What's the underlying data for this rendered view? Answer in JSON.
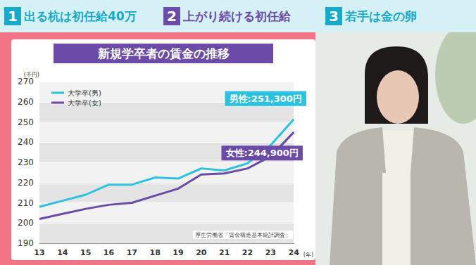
{
  "header": {
    "topics": [
      {
        "number": "1",
        "text": "出る杭は初任給40万",
        "color": "#17a9c9"
      },
      {
        "number": "2",
        "text": "上がり続ける初任給",
        "color": "#6b4aa8"
      },
      {
        "number": "3",
        "text": "若手は金の卵",
        "color": "#17a9c9"
      }
    ]
  },
  "chart_data": {
    "type": "line",
    "title": "新規学卒者の賃金の推移",
    "y_label": "(千円)",
    "x_label": "(年)",
    "source": "厚生労働省「賃金構造基本統計調査」",
    "categories": [
      "13",
      "14",
      "15",
      "16",
      "17",
      "18",
      "19",
      "20",
      "21",
      "22",
      "23",
      "24"
    ],
    "series": [
      {
        "name": "大学卒(男)",
        "color": "#2ac2df",
        "values": [
          208,
          211,
          214,
          219,
          219,
          222.5,
          222,
          227,
          226,
          229.5,
          238.5,
          251.3
        ]
      },
      {
        "name": "大学卒(女)",
        "color": "#6b4aa8",
        "values": [
          202,
          204.5,
          207,
          209,
          210,
          213.5,
          217,
          224,
          224.5,
          227,
          233,
          244.9
        ]
      }
    ],
    "annotations": [
      "男性:251,300円",
      "女性:244,900円"
    ],
    "ylim": [
      190,
      270
    ],
    "yticks": [
      190,
      200,
      210,
      220,
      230,
      240,
      250,
      260,
      270
    ],
    "grid": true,
    "legend": "upper left"
  }
}
